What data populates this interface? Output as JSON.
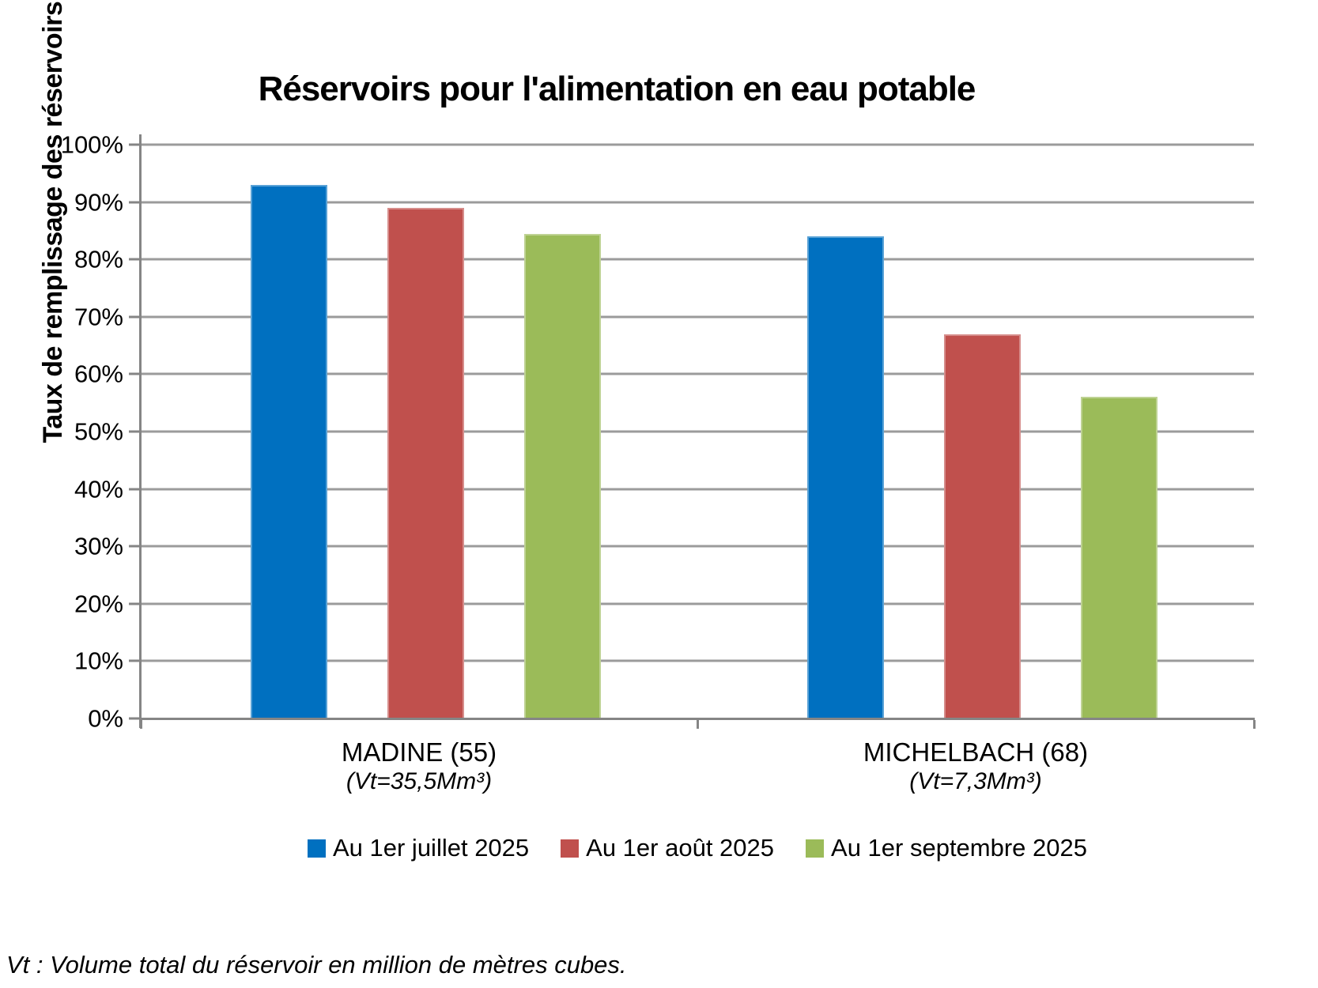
{
  "chart_data": {
    "type": "bar",
    "title": "Réservoirs pour l'alimentation en eau potable",
    "ylabel": "Taux de remplissage des réservoirs",
    "ylim": [
      0,
      100
    ],
    "ytick_step": 10,
    "ytick_labels": [
      "0%",
      "10%",
      "20%",
      "30%",
      "40%",
      "50%",
      "60%",
      "70%",
      "80%",
      "90%",
      "100%"
    ],
    "grid": true,
    "legend_position": "bottom",
    "categories": [
      "MADINE (55)",
      "MICHELBACH (68)"
    ],
    "category_subtitles": [
      "(Vt=35,5Mm³)",
      "(Vt=7,3Mm³)"
    ],
    "series": [
      {
        "name": "Au 1er juillet 2025",
        "color": "#0070C0",
        "values": [
          93,
          84
        ]
      },
      {
        "name": "Au 1er août 2025",
        "color": "#C0504D",
        "values": [
          89,
          67
        ]
      },
      {
        "name": "Au 1er septembre 2025",
        "color": "#9BBB59",
        "values": [
          84.5,
          56
        ]
      }
    ]
  },
  "footnote": "Vt : Volume total du réservoir en million de mètres cubes.",
  "colors": {
    "axis": "#858585",
    "gridline": "#9B9B9B",
    "text": "#000000"
  }
}
